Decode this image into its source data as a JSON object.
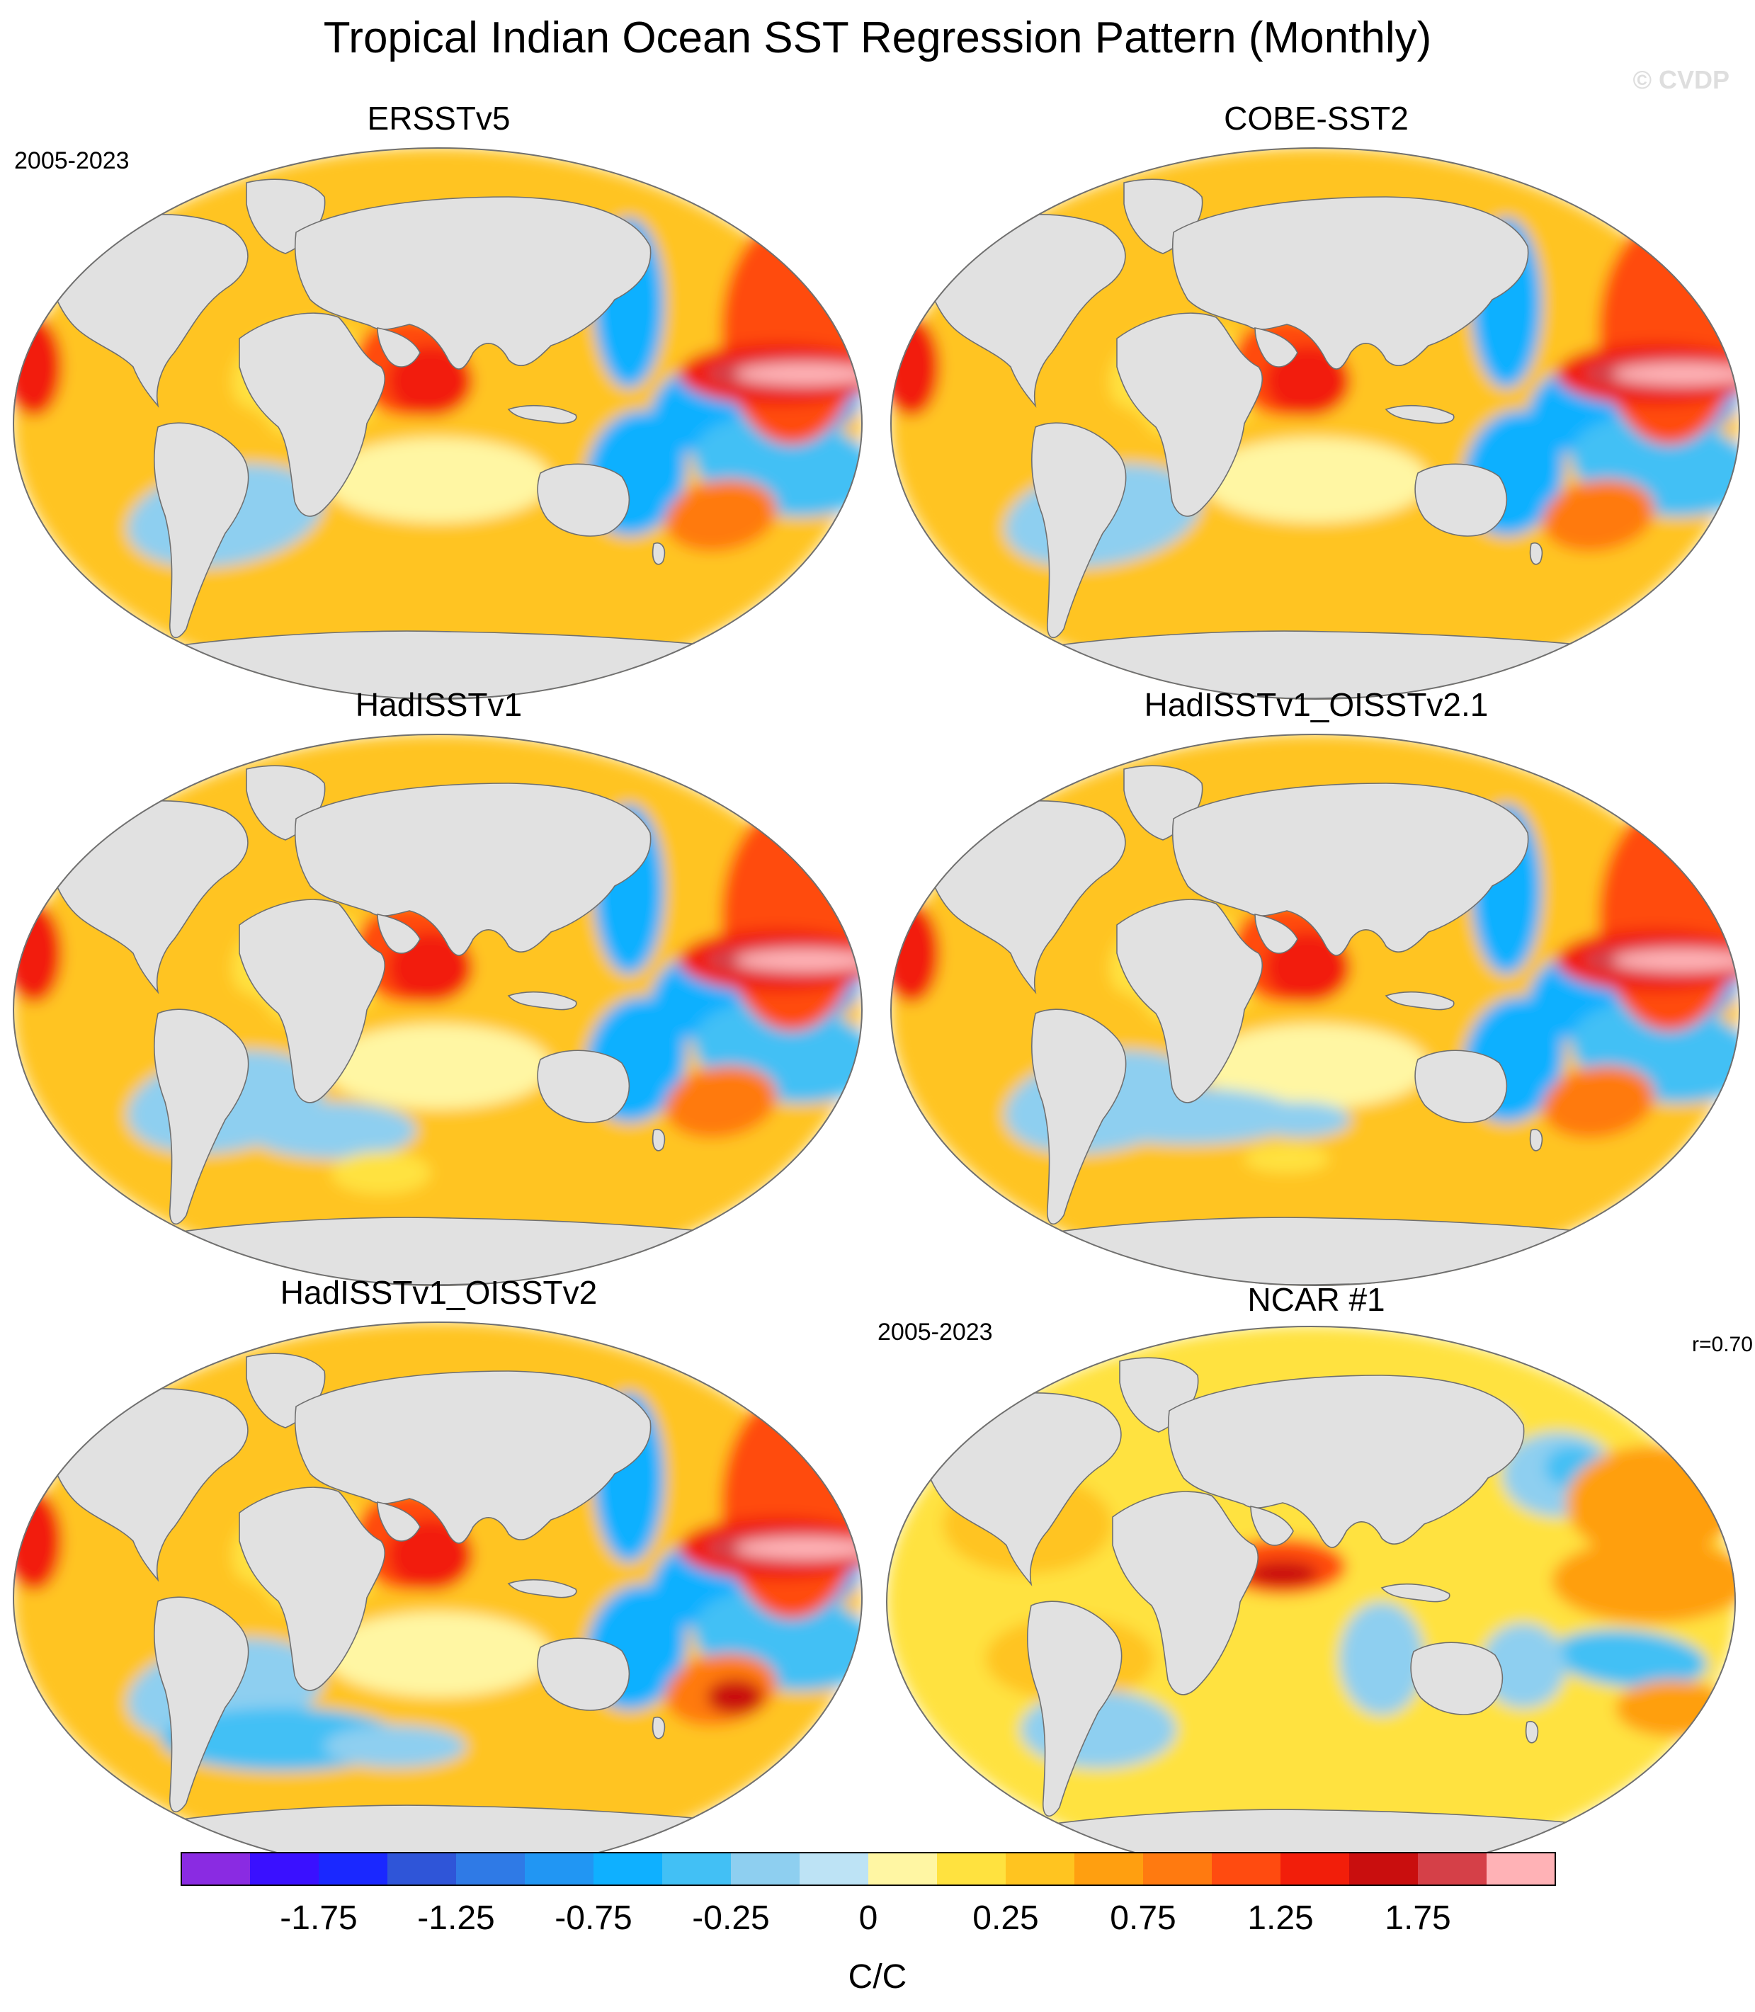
{
  "figure": {
    "title": "Tropical Indian Ocean SST Regression Pattern (Monthly)",
    "watermark": "© CVDP"
  },
  "colors": {
    "land": "#e1e1e1",
    "coast": "#707070",
    "outline": "#707070"
  },
  "panels": [
    {
      "title": "ERSSTv5",
      "period": "2005-2023",
      "corr": ""
    },
    {
      "title": "COBE-SST2",
      "period": "",
      "corr": ""
    },
    {
      "title": "HadISSTv1",
      "period": "",
      "corr": ""
    },
    {
      "title": "HadISSTv1_OISSTv2.1",
      "period": "",
      "corr": ""
    },
    {
      "title": "HadISSTv1_OISSTv2",
      "period": "",
      "corr": ""
    },
    {
      "title": "NCAR #1",
      "period": "2005-2023",
      "corr": "r=0.70"
    }
  ],
  "colorbar": {
    "colors": [
      "#8a2be2",
      "#3a10ff",
      "#1a28ff",
      "#2f55d8",
      "#2f7ae6",
      "#2196f3",
      "#0fb0ff",
      "#42c0f5",
      "#8ecff0",
      "#bde3f5",
      "#fff6a3",
      "#ffe23f",
      "#ffc420",
      "#ff9f10",
      "#ff7a10",
      "#ff4b10",
      "#f21e0a",
      "#c90e0e",
      "#d54048",
      "#ffb2b6"
    ],
    "tick_labels": [
      "-1.75",
      "-1.25",
      "-0.75",
      "-0.25",
      "0",
      "0.25",
      "0.75",
      "1.25",
      "1.75"
    ],
    "units": "C/C"
  },
  "chart_data": {
    "type": "heatmap",
    "title": "Tropical Indian Ocean SST Regression Pattern (Monthly)",
    "units": "C/C",
    "contour_levels": [
      -2.0,
      -1.75,
      -1.5,
      -1.25,
      -1.0,
      -0.75,
      -0.5,
      -0.25,
      -0.1,
      0,
      0.1,
      0.25,
      0.5,
      0.75,
      1.0,
      1.25,
      1.5,
      1.75,
      2.0
    ],
    "panels": [
      "ERSSTv5",
      "COBE-SST2",
      "HadISSTv1",
      "HadISSTv1_OISSTv2.1",
      "HadISSTv1_OISSTv2",
      "NCAR #1"
    ],
    "pattern_correlation": {
      "NCAR #1": 0.7
    }
  }
}
